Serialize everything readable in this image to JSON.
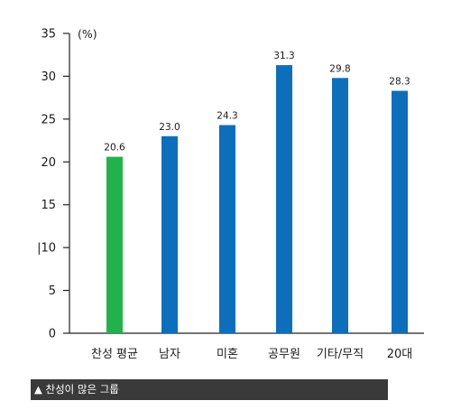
{
  "chart_data": {
    "type": "bar",
    "categories": [
      "찬성 평균",
      "남자",
      "미혼",
      "공무원",
      "기타/무직",
      "20대"
    ],
    "values": [
      20.6,
      23.0,
      24.3,
      31.3,
      29.8,
      28.3
    ],
    "data_labels": [
      "20.6",
      "23.0",
      "24.3",
      "31.3",
      "29.8",
      "28.3"
    ],
    "bar_colors": [
      "#21b24b",
      "#0d6fbb",
      "#0d6fbb",
      "#0d6fbb",
      "#0d6fbb",
      "#0d6fbb"
    ],
    "y_ticks": [
      0,
      5,
      10,
      15,
      20,
      25,
      30,
      35
    ],
    "y_tick_labels": [
      "0",
      "5",
      "|10",
      "15",
      "20",
      "25",
      "30",
      "35"
    ],
    "unit": "(%)",
    "ylim": [
      0,
      35
    ],
    "title": "",
    "xlabel": "",
    "ylabel": "",
    "grid": false,
    "legend": "none"
  },
  "caption": {
    "text": "▲ 찬성이 많은 그룹"
  }
}
